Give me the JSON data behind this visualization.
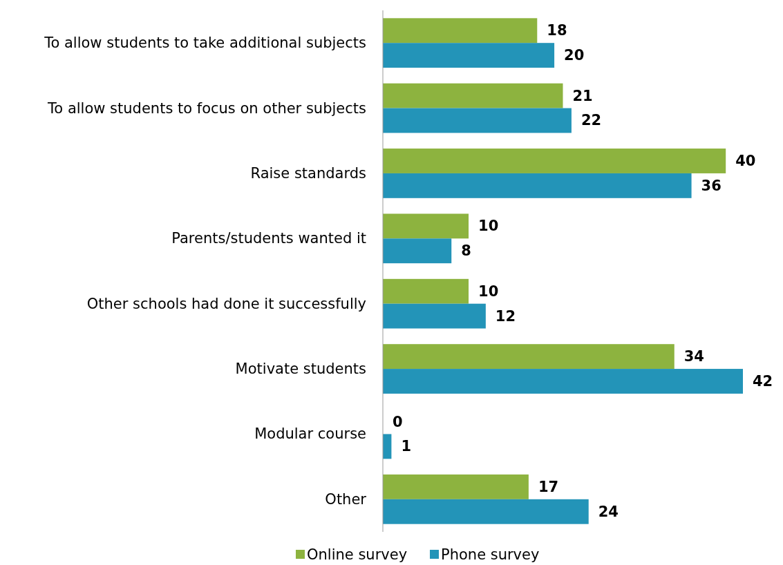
{
  "chart_data": {
    "type": "bar",
    "orientation": "horizontal",
    "categories": [
      "To allow students to take additional subjects",
      "To allow students to focus on other subjects",
      "Raise standards",
      "Parents/students wanted it",
      "Other schools had done it successfully",
      "Motivate students",
      "Modular course",
      "Other"
    ],
    "series": [
      {
        "name": "Online survey",
        "color": "#8db33f",
        "values": [
          18,
          21,
          40,
          10,
          10,
          34,
          0,
          17
        ]
      },
      {
        "name": "Phone survey",
        "color": "#2394b8",
        "values": [
          20,
          22,
          36,
          8,
          12,
          42,
          1,
          24
        ]
      }
    ],
    "data_labels": true,
    "legend": "bottom"
  }
}
